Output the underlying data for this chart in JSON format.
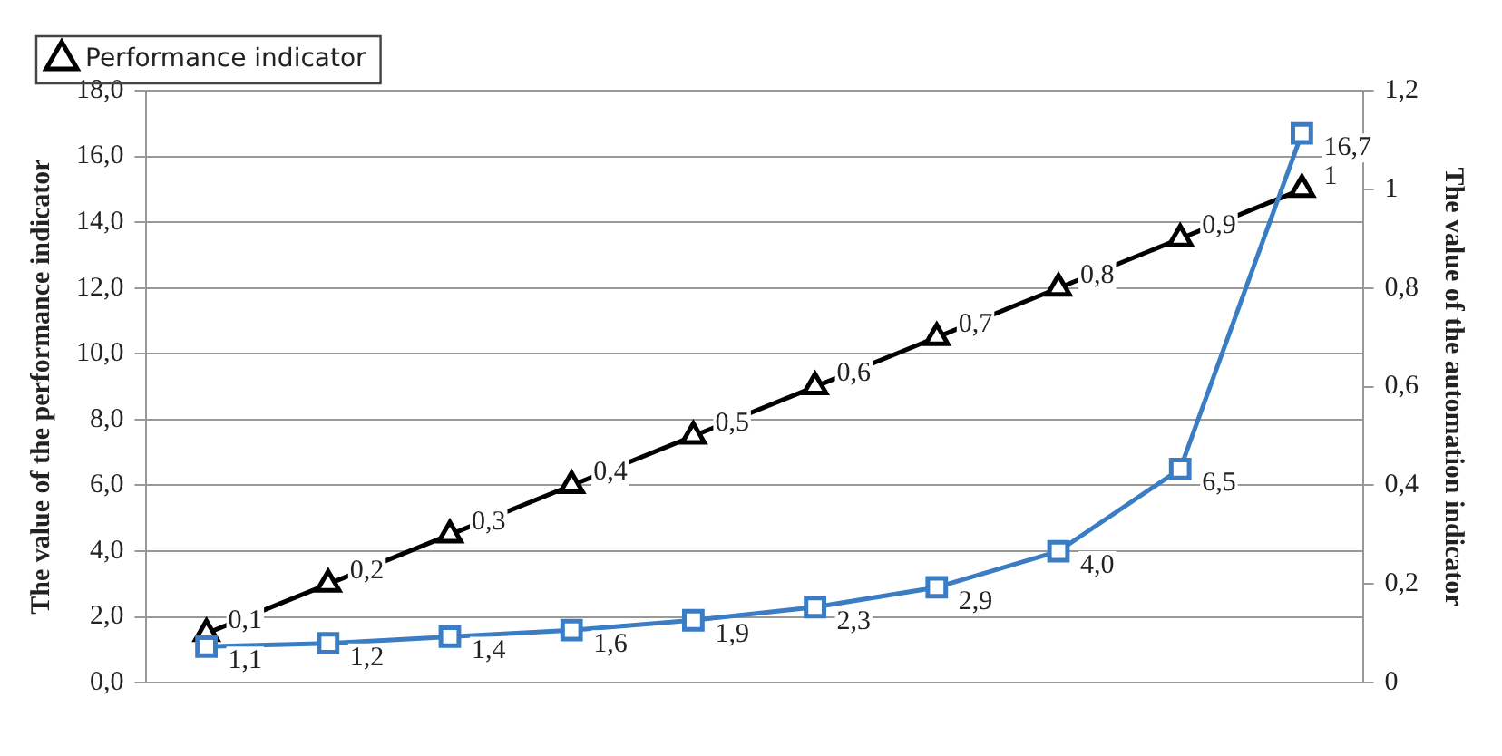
{
  "chart_data": {
    "type": "line",
    "categories": [
      null,
      null,
      null,
      null,
      null,
      null,
      null,
      null,
      null,
      null
    ],
    "ylabel": "The value of the performance indicator",
    "y2label": "The value of the automation indicator",
    "ylim": [
      0,
      18
    ],
    "yticks": [
      {
        "value": 0,
        "label": "0,0"
      },
      {
        "value": 2,
        "label": "2,0"
      },
      {
        "value": 4,
        "label": "4,0"
      },
      {
        "value": 6,
        "label": "6,0"
      },
      {
        "value": 8,
        "label": "8,0"
      },
      {
        "value": 10,
        "label": "10,0"
      },
      {
        "value": 12,
        "label": "12,0"
      },
      {
        "value": 14,
        "label": "14,0"
      },
      {
        "value": 16,
        "label": "16,0"
      },
      {
        "value": 18,
        "label": "18,0"
      }
    ],
    "y2lim": [
      0,
      1.2
    ],
    "y2ticks": [
      0,
      {
        "value": 0.2,
        "label": "0,2"
      },
      {
        "value": 0.4,
        "label": "0,4"
      },
      {
        "value": 0.6,
        "label": "0,6"
      },
      {
        "value": 0.8,
        "label": "0,8"
      },
      1,
      {
        "value": 1.2,
        "label": "1,2"
      }
    ],
    "grid": "y",
    "legend": "top left",
    "series": [
      {
        "color": "#3a7dc4",
        "marker": "square",
        "values": [
          1.1,
          1.2,
          1.4,
          1.6,
          1.9,
          2.3,
          2.9,
          4.0,
          6.5,
          16.7
        ],
        "value_labels": [
          "1,1",
          "1,2",
          "1,4",
          "1,6",
          "1,9",
          "2,3",
          "2,9",
          "4,0",
          "6,5",
          "16,7"
        ]
      },
      {
        "name": "Performance indicator",
        "color": "#000000",
        "marker": "triangle",
        "axis": "y2",
        "values": [
          0.1,
          0.2,
          0.3,
          0.4,
          0.5,
          0.6,
          0.7,
          0.8,
          0.9,
          1
        ],
        "value_labels": [
          "0,1",
          "0,2",
          "0,3",
          "0,4",
          "0,5",
          "0,6",
          "0,7",
          "0,8",
          "0,9",
          "1"
        ]
      }
    ]
  }
}
